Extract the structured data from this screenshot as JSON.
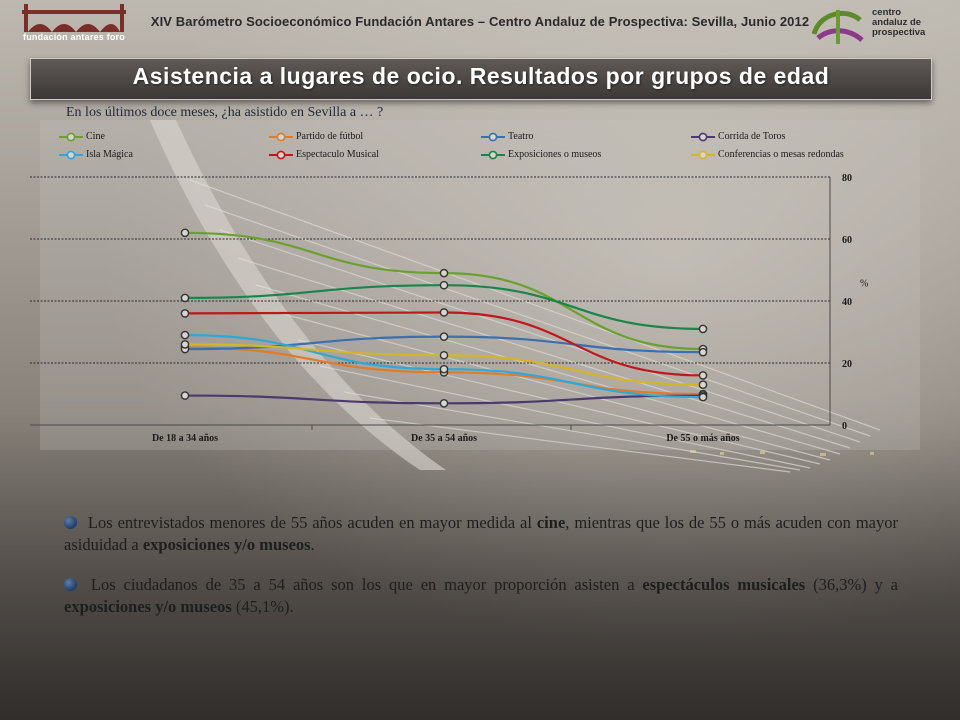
{
  "header": {
    "title": "XIV Barómetro Socioeconómico Fundación Antares – Centro Andaluz de Prospectiva: Sevilla, Junio 2012"
  },
  "logos": {
    "left_text": "fundación antares foro",
    "right_lines": [
      "centro",
      "andaluz de",
      "prospectiva"
    ]
  },
  "banner": {
    "title": "Asistencia a lugares de ocio. Resultados por grupos de edad"
  },
  "question": "En los últimos doce meses, ¿ha asistido en Sevilla a … ?",
  "chart_data": {
    "type": "line",
    "categories": [
      "De 18 a 34 años",
      "De 35 a 54 años",
      "De 55 o más años"
    ],
    "ylabel": "%",
    "ylim": [
      0,
      80
    ],
    "yticks": [
      "0",
      "20",
      "40",
      "60",
      "80"
    ],
    "grid": true,
    "legend_position": "top",
    "series": [
      {
        "name": "Cine",
        "color": "#6aa12e",
        "values": [
          62.0,
          49.0,
          24.5
        ]
      },
      {
        "name": "Partido de fútbol",
        "color": "#e07b2a",
        "values": [
          25.0,
          17.0,
          10.0
        ]
      },
      {
        "name": "Teatro",
        "color": "#3a6fb0",
        "values": [
          24.5,
          28.5,
          23.5
        ]
      },
      {
        "name": "Corrida de Toros",
        "color": "#4a3a6e",
        "values": [
          9.5,
          7.0,
          9.5
        ]
      },
      {
        "name": "Isla Mágica",
        "color": "#2fa7d8",
        "values": [
          29.0,
          18.0,
          9.0
        ]
      },
      {
        "name": "Espectaculo Musical",
        "color": "#c0161d",
        "values": [
          36.0,
          36.3,
          16.0
        ]
      },
      {
        "name": "Exposiciones o museos",
        "color": "#19854a",
        "values": [
          41.0,
          45.1,
          31.0
        ]
      },
      {
        "name": "Conferencias o mesas redondas",
        "color": "#d4b52a",
        "values": [
          26.0,
          22.5,
          13.0
        ]
      }
    ]
  },
  "bullets": [
    {
      "parts": [
        {
          "t": " Los entrevistados menores de 55 años acuden en mayor medida al ",
          "b": false
        },
        {
          "t": "cine",
          "b": true
        },
        {
          "t": ", mientras que los de 55 o más acuden con mayor asiduidad a ",
          "b": false
        },
        {
          "t": "exposiciones y/o museos",
          "b": true
        },
        {
          "t": ".",
          "b": false
        }
      ]
    },
    {
      "parts": [
        {
          "t": " Los ciudadanos de 35 a 54 años son los que en mayor proporción asisten a ",
          "b": false
        },
        {
          "t": "espectáculos musicales",
          "b": true
        },
        {
          "t": " (36,3%) y a ",
          "b": false
        },
        {
          "t": "exposiciones y/o museos",
          "b": true
        },
        {
          "t": " (45,1%).",
          "b": false
        }
      ]
    }
  ]
}
